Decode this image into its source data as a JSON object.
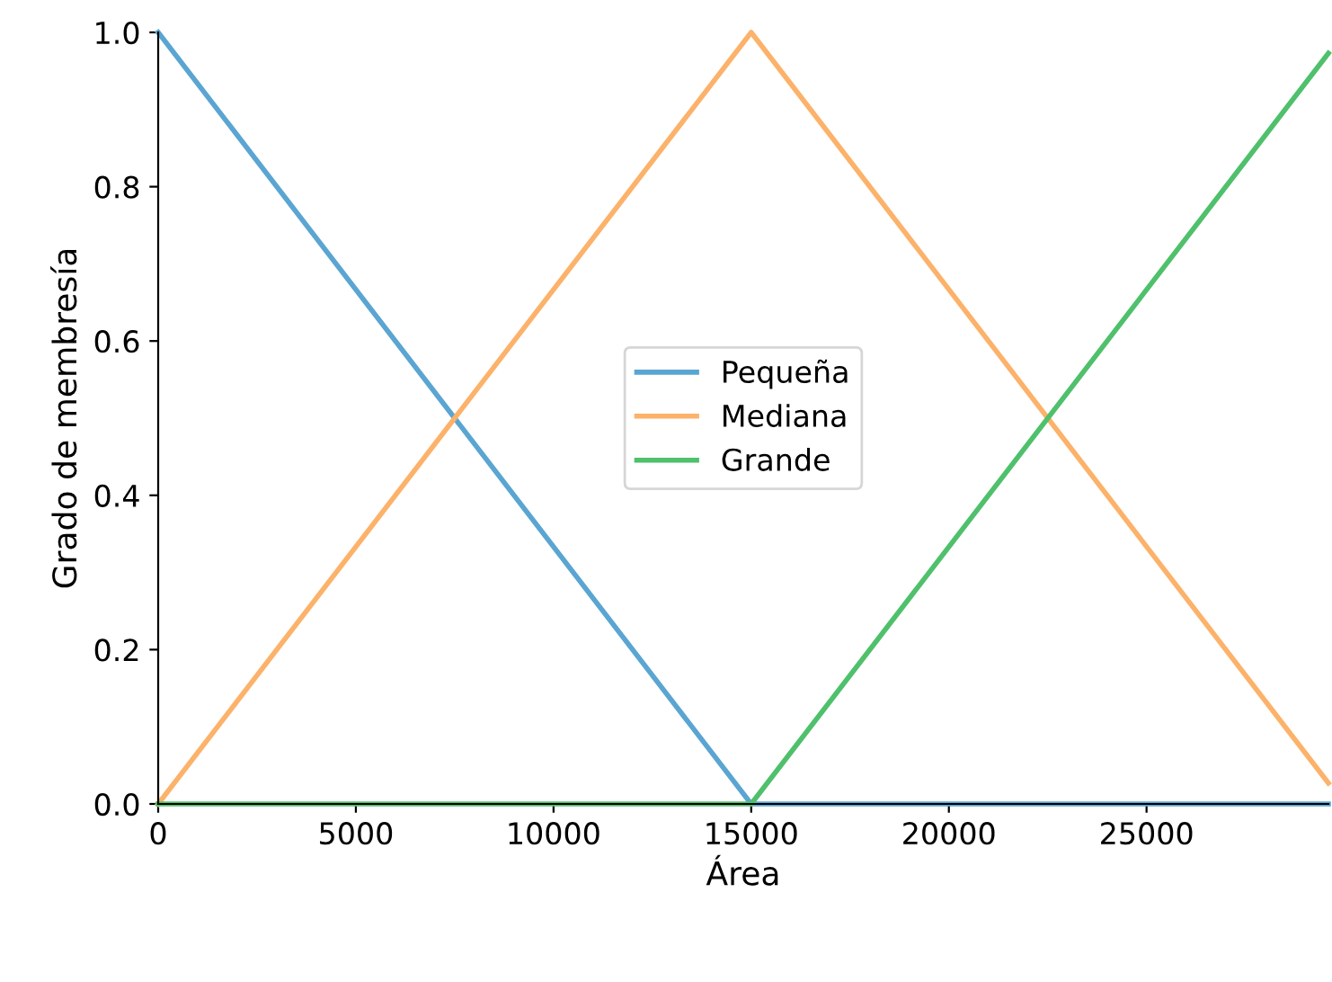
{
  "chart_data": {
    "type": "line",
    "xlabel": "Área",
    "ylabel": "Grado de membresía",
    "xlim": [
      0,
      29600
    ],
    "ylim": [
      0,
      1.0
    ],
    "xticks": [
      0,
      5000,
      10000,
      15000,
      20000,
      25000
    ],
    "yticks": [
      {
        "value": 0,
        "label": "0.0"
      },
      {
        "value": 0.2,
        "label": "0.2"
      },
      {
        "value": 0.4,
        "label": "0.4"
      },
      {
        "value": 0.6,
        "label": "0.6"
      },
      {
        "value": 0.8,
        "label": "0.8"
      },
      {
        "value": 1.0,
        "label": "1.0"
      }
    ],
    "grid": false,
    "legend": "center",
    "marker": "none",
    "line_style": "solid",
    "series": [
      {
        "name": "Pequeña",
        "color": "#5aa5d2",
        "x": [
          0,
          15000,
          29600
        ],
        "values": [
          1.0,
          0,
          0
        ]
      },
      {
        "name": "Mediana",
        "color": "#fcb26a",
        "x": [
          0,
          15000,
          29600
        ],
        "values": [
          0,
          1.0,
          0.027
        ]
      },
      {
        "name": "Grande",
        "color": "#4fc06b",
        "x": [
          0,
          15000,
          29600
        ],
        "values": [
          0,
          0,
          0.973
        ]
      }
    ]
  }
}
